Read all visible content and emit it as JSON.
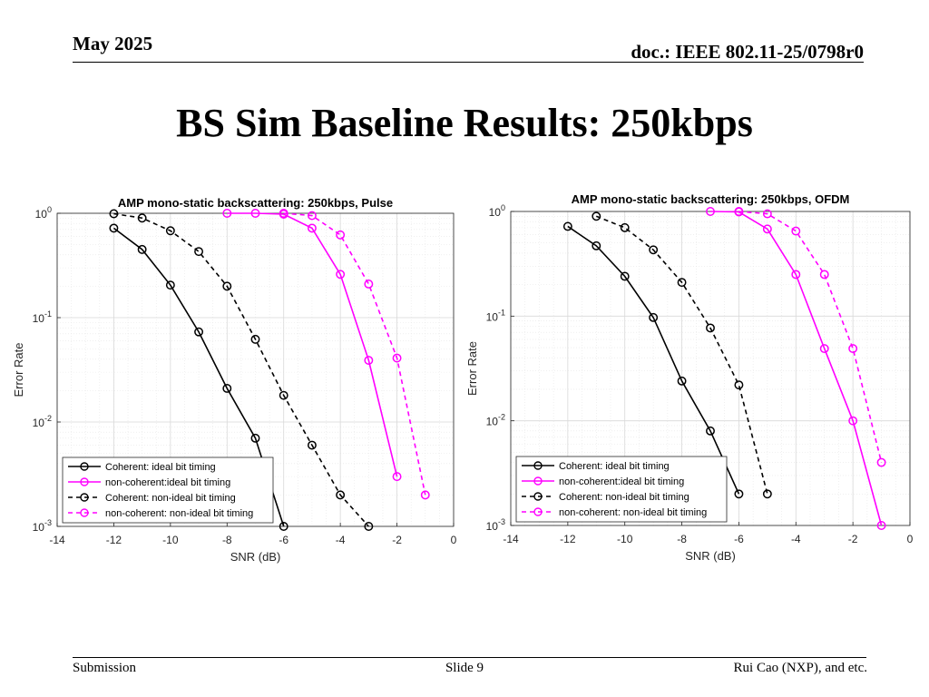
{
  "header": {
    "left": "May 2025",
    "right": "doc.: IEEE 802.11-25/0798r0"
  },
  "title": "BS Sim Baseline Results: 250kbps",
  "footer": {
    "left": "Submission",
    "center": "Slide 9",
    "right": "Rui Cao (NXP), and etc."
  },
  "colors": {
    "coherent": "#000000",
    "noncoherent": "#ff00ff"
  },
  "chart_data": [
    {
      "type": "line",
      "title": "AMP mono-static backscattering: 250kbps, Pulse",
      "xlabel": "SNR (dB)",
      "ylabel": "Error Rate",
      "xlim": [
        -14,
        0
      ],
      "ylim": [
        0.001,
        1
      ],
      "yscale": "log",
      "grid": true,
      "legend_position": "bottom-left",
      "xticks": [
        "-14",
        "-12",
        "-10",
        "-8",
        "-6",
        "-4",
        "-2",
        "0"
      ],
      "yticks": [
        {
          "base": "10",
          "exp": "0"
        },
        {
          "base": "10",
          "exp": "-1"
        },
        {
          "base": "10",
          "exp": "-2"
        },
        {
          "base": "10",
          "exp": "-3"
        }
      ],
      "series": [
        {
          "name": "Coherent: ideal bit timing",
          "color": "#000000",
          "dash": false,
          "x": [
            -12,
            -11,
            -10,
            -9,
            -8,
            -7,
            -6
          ],
          "y": [
            0.72,
            0.45,
            0.205,
            0.073,
            0.021,
            0.007,
            0.001
          ]
        },
        {
          "name": "non-coherent:ideal bit timing",
          "color": "#ff00ff",
          "dash": false,
          "x": [
            -8,
            -7,
            -6,
            -5,
            -4,
            -3,
            -2
          ],
          "y": [
            1.0,
            1.0,
            0.98,
            0.72,
            0.26,
            0.039,
            0.003
          ]
        },
        {
          "name": "Coherent: non-ideal bit timing",
          "color": "#000000",
          "dash": true,
          "x": [
            -12,
            -11,
            -10,
            -9,
            -8,
            -7,
            -6,
            -5,
            -4,
            -3
          ],
          "y": [
            0.99,
            0.9,
            0.68,
            0.43,
            0.2,
            0.062,
            0.018,
            0.006,
            0.002,
            0.001
          ]
        },
        {
          "name": "non-coherent: non-ideal bit timing",
          "color": "#ff00ff",
          "dash": true,
          "x": [
            -6,
            -5,
            -4,
            -3,
            -2,
            -1
          ],
          "y": [
            1.0,
            0.95,
            0.62,
            0.21,
            0.041,
            0.002
          ]
        }
      ]
    },
    {
      "type": "line",
      "title": "AMP mono-static backscattering: 250kbps, OFDM",
      "xlabel": "SNR (dB)",
      "ylabel": "Error Rate",
      "xlim": [
        -14,
        0
      ],
      "ylim": [
        0.001,
        1
      ],
      "yscale": "log",
      "grid": true,
      "legend_position": "bottom-left",
      "xticks": [
        "-14",
        "-12",
        "-10",
        "-8",
        "-6",
        "-4",
        "-2",
        "0"
      ],
      "yticks": [
        {
          "base": "10",
          "exp": "0"
        },
        {
          "base": "10",
          "exp": "-1"
        },
        {
          "base": "10",
          "exp": "-2"
        },
        {
          "base": "10",
          "exp": "-3"
        }
      ],
      "series": [
        {
          "name": "Coherent: ideal bit timing",
          "color": "#000000",
          "dash": false,
          "x": [
            -12,
            -11,
            -10,
            -9,
            -8,
            -7,
            -6
          ],
          "y": [
            0.72,
            0.47,
            0.24,
            0.097,
            0.024,
            0.008,
            0.002
          ]
        },
        {
          "name": "non-coherent:ideal bit timing",
          "color": "#ff00ff",
          "dash": false,
          "x": [
            -7,
            -6,
            -5,
            -4,
            -3,
            -2,
            -1
          ],
          "y": [
            1.0,
            0.99,
            0.68,
            0.25,
            0.049,
            0.01,
            0.001
          ]
        },
        {
          "name": "Coherent: non-ideal bit timing",
          "color": "#000000",
          "dash": true,
          "x": [
            -11,
            -10,
            -9,
            -8,
            -7,
            -6,
            -5
          ],
          "y": [
            0.9,
            0.7,
            0.43,
            0.21,
            0.077,
            0.022,
            0.002
          ]
        },
        {
          "name": "non-coherent: non-ideal bit timing",
          "color": "#ff00ff",
          "dash": true,
          "x": [
            -6,
            -5,
            -4,
            -3,
            -2,
            -1
          ],
          "y": [
            1.0,
            0.95,
            0.65,
            0.25,
            0.049,
            0.004
          ]
        }
      ]
    }
  ]
}
